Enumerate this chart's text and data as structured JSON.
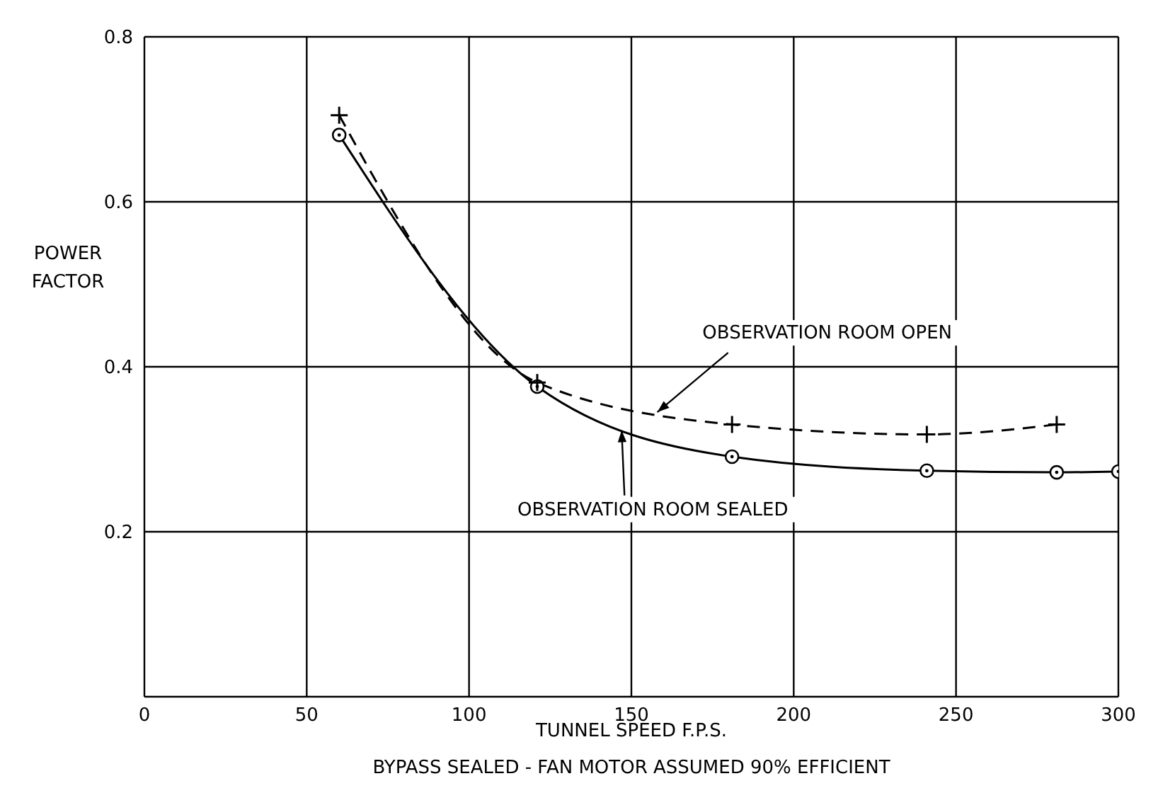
{
  "chart_data": {
    "type": "line",
    "xlabel": "TUNNEL SPEED F.P.S.",
    "ylabel": "POWER FACTOR",
    "xlim": [
      0,
      300
    ],
    "xticks": [
      0,
      50,
      100,
      150,
      200,
      250,
      300
    ],
    "ylim": [
      0,
      0.8
    ],
    "yticks": [
      0.2,
      0.4,
      0.6,
      0.8
    ],
    "grid": true,
    "legend": false,
    "series": [
      {
        "color": "#000000",
        "line_style": "dashed",
        "marker": "cross",
        "x": [
          60,
          121,
          181,
          241,
          281
        ],
        "values": [
          0.705,
          0.381,
          0.33,
          0.318,
          0.33
        ]
      },
      {
        "color": "#000000",
        "line_style": "solid",
        "marker": "circle",
        "x": [
          60,
          121,
          181,
          241,
          281,
          300
        ],
        "values": [
          0.681,
          0.376,
          0.291,
          0.274,
          0.272,
          0.273
        ]
      }
    ],
    "annotations": [
      {
        "text": "OBSERVATION ROOM OPEN",
        "x": 158,
        "y": 0.345
      },
      {
        "text": "OBSERVATION ROOM SEALED",
        "x": 147,
        "y": 0.323
      },
      "BYPASS SEALED - FAN MOTOR ASSUMED 90% EFFICIENT"
    ]
  }
}
